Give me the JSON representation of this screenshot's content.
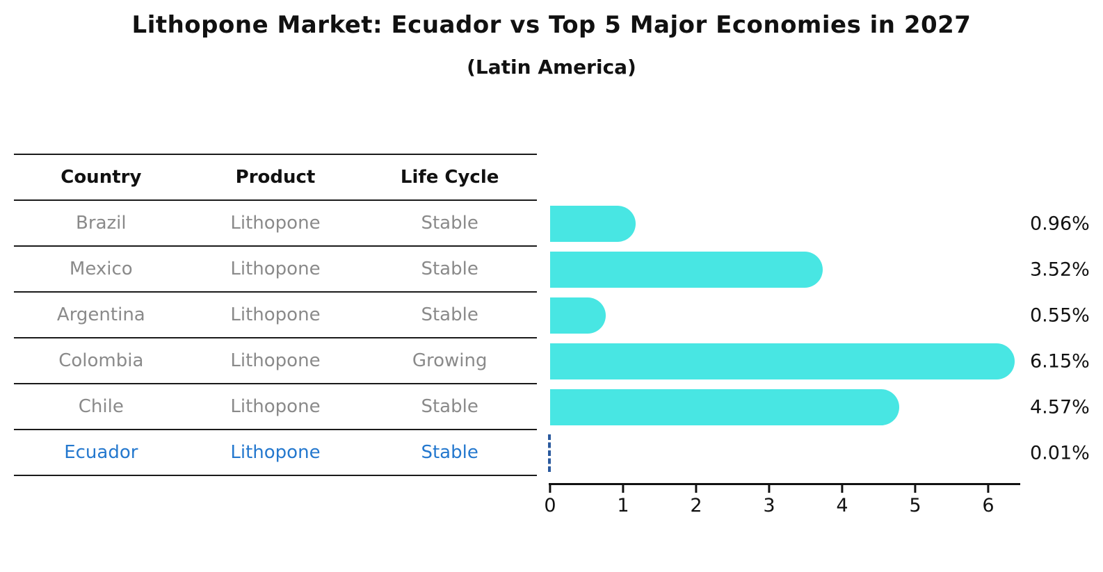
{
  "title": "Lithopone Market: Ecuador vs Top 5 Major Economies in 2027",
  "subtitle": "(Latin America)",
  "colors": {
    "bar": "#48e6e3",
    "highlight_text": "#2478ce",
    "ecuador_marker": "#2b5a9e",
    "table_text": "#8a8a8a",
    "axis_text": "#111111"
  },
  "table": {
    "headers": [
      "Country",
      "Product",
      "Life Cycle"
    ],
    "rows": [
      {
        "country": "Brazil",
        "product": "Lithopone",
        "life_cycle": "Stable",
        "highlighted": false
      },
      {
        "country": "Mexico",
        "product": "Lithopone",
        "life_cycle": "Stable",
        "highlighted": false
      },
      {
        "country": "Argentina",
        "product": "Lithopone",
        "life_cycle": "Stable",
        "highlighted": false
      },
      {
        "country": "Colombia",
        "product": "Lithopone",
        "life_cycle": "Growing",
        "highlighted": false
      },
      {
        "country": "Chile",
        "product": "Lithopone",
        "life_cycle": "Stable",
        "highlighted": false
      },
      {
        "country": "Ecuador",
        "product": "Lithopone",
        "life_cycle": "Stable",
        "highlighted": true
      }
    ]
  },
  "chart_data": {
    "type": "bar",
    "orientation": "horizontal",
    "title": "Lithopone Market: Ecuador vs Top 5 Major Economies in 2027",
    "subtitle": "(Latin America)",
    "categories": [
      "Brazil",
      "Mexico",
      "Argentina",
      "Colombia",
      "Chile",
      "Ecuador"
    ],
    "values": [
      0.96,
      3.52,
      0.55,
      6.15,
      4.57,
      0.01
    ],
    "labels": [
      "0.96%",
      "3.52%",
      "0.55%",
      "6.15%",
      "4.57%",
      "0.01%"
    ],
    "x_ticks": [
      0,
      1,
      2,
      3,
      4,
      5,
      6
    ],
    "xlim": [
      0,
      6.5
    ],
    "xlabel": "",
    "ylabel": "",
    "unit": "%",
    "grid": false,
    "legend": false,
    "highlight_category": "Ecuador",
    "highlight_style": "dashed-marker"
  }
}
